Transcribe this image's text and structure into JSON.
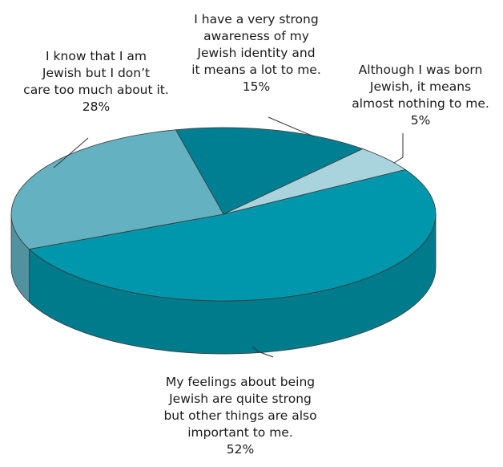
{
  "chart_data": {
    "type": "pie",
    "style": "3d",
    "slices": [
      {
        "label": "I have a very strong awareness of my Jewish identity and it means a lot to me.",
        "value": 15,
        "value_label": "15%",
        "color": "#007f93"
      },
      {
        "label": "Although I was born Jewish, it means almost nothing to me.",
        "value": 5,
        "value_label": "5%",
        "color": "#a9d3dd"
      },
      {
        "label": "My feelings about being Jewish are quite strong but other things are also important to me.",
        "value": 52,
        "value_label": "52%",
        "color": "#0096ab"
      },
      {
        "label": "I know that I am Jewish but I don't care too much about it.",
        "value": 28,
        "value_label": "28%",
        "color": "#64b1c1"
      }
    ]
  },
  "labels": {
    "strong": {
      "lines": [
        "I have a very strong",
        "awareness of my",
        "Jewish identity and",
        "it means a lot to me."
      ],
      "pct": "15%"
    },
    "nothing": {
      "lines": [
        "Although I was born",
        "Jewish, it means",
        "almost nothing to me."
      ],
      "pct": "5%"
    },
    "quite": {
      "lines": [
        "My feelings about being",
        "Jewish are quite strong",
        "but other things are also",
        "important to me."
      ],
      "pct": "52%"
    },
    "dontcare": {
      "lines": [
        "I know that I am",
        "Jewish but I don’t",
        "care too much about it."
      ],
      "pct": "28%"
    }
  }
}
